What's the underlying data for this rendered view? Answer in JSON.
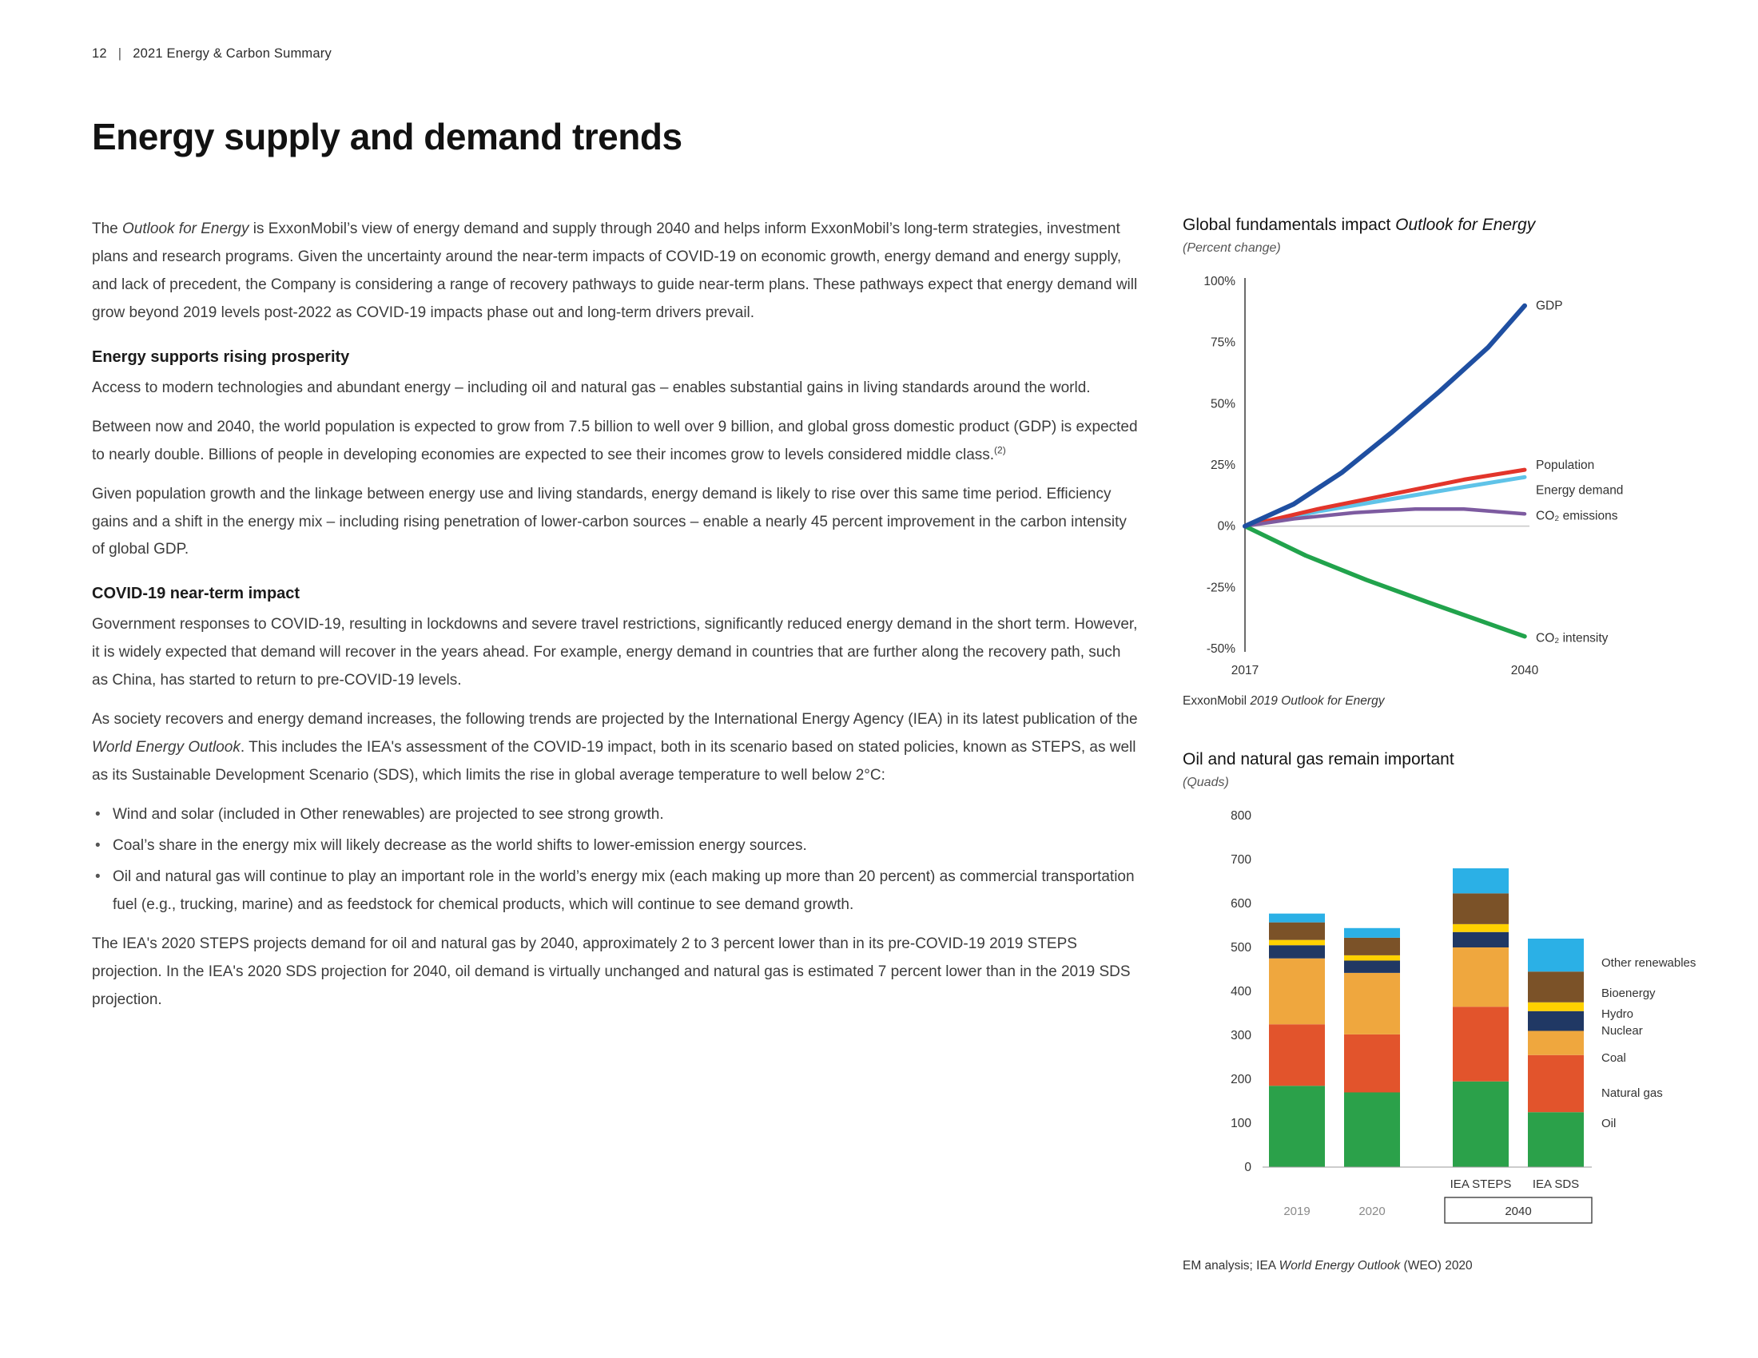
{
  "page": {
    "number": "12",
    "separator": "|",
    "doc_title": "2021 Energy & Carbon Summary",
    "title": "Energy supply and demand trends"
  },
  "intro": {
    "pre": "The ",
    "italic": "Outlook for Energy",
    "rest": " is ExxonMobil’s view of energy demand and supply through 2040 and helps inform ExxonMobil’s long-term strategies, investment plans and research programs. Given the uncertainty around the near-term impacts of COVID-19 on economic growth, energy demand and energy supply, and lack of precedent, the Company is considering a range of recovery pathways to guide near-term plans. These pathways expect that energy demand will grow beyond 2019 levels post-2022 as COVID-19 impacts phase out and long-term drivers prevail."
  },
  "prosperity": {
    "heading": "Energy supports rising prosperity",
    "p1": "Access to modern technologies and abundant energy – including oil and natural gas – enables substantial gains in living standards around the world.",
    "p2": "Between now and 2040, the world population is expected to grow from 7.5 billion to well over 9 billion, and global gross domestic product (GDP) is expected to nearly double. Billions of people in developing economies are expected to see their incomes grow to levels considered middle class.",
    "p2_sup": "(2)",
    "p3": "Given population growth and the linkage between energy use and living standards, energy demand is likely to rise over this same time period. Efficiency gains and a shift in the energy mix – including rising penetration of lower-carbon sources – enable a nearly 45 percent improvement in the carbon intensity of global GDP."
  },
  "covid": {
    "heading": "COVID-19 near-term impact",
    "p1": "Government responses to COVID-19, resulting in lockdowns and severe travel restrictions, significantly reduced energy demand in the short term. However, it is widely expected that demand will recover in the years ahead. For example, energy demand in countries that are further along the recovery path, such as China, has started to return to pre-COVID-19 levels.",
    "p2_pre": "As society recovers and energy demand increases, the following trends are projected by the International Energy Agency (IEA) in its latest publication of the ",
    "p2_italic": "World Energy Outlook",
    "p2_rest": ". This includes the IEA's assessment of the COVID-19 impact, both in its scenario based on stated policies, known as STEPS, as well as its Sustainable Development Scenario (SDS), which limits the rise in global average temperature to well below 2°C:",
    "bullets": [
      "Wind and solar (included in Other renewables) are projected to see strong growth.",
      "Coal’s share in the energy mix will likely decrease as the world shifts to lower-emission energy sources.",
      "Oil and natural gas will continue to play an important role in the world’s energy mix (each making up more than 20 percent) as commercial transportation fuel (e.g., trucking, marine) and as feedstock for chemical products, which will continue to see demand growth."
    ],
    "p3": "The IEA's 2020 STEPS projects demand for oil and natural gas by 2040, approximately 2 to 3 percent lower than in its pre-COVID-19 2019 STEPS projection. In the IEA's 2020 SDS projection for 2040, oil demand is virtually unchanged and natural gas is estimated 7 percent lower than in the 2019 SDS projection."
  },
  "chart_data": [
    {
      "type": "line",
      "title_pre": "Global fundamentals impact ",
      "title_italic": "Outlook for Energy",
      "subtitle": "(Percent change)",
      "xlim": [
        2017,
        2040
      ],
      "ylim": [
        -50,
        100
      ],
      "yticks": [
        {
          "label": "100%",
          "value": 100
        },
        {
          "label": "75%",
          "value": 75
        },
        {
          "label": "50%",
          "value": 50
        },
        {
          "label": "25%",
          "value": 25
        },
        {
          "label": "0%",
          "value": 0
        },
        {
          "label": "-25%",
          "value": -25
        },
        {
          "label": "-50%",
          "value": -50
        }
      ],
      "xticks": [
        {
          "label": "2017",
          "value": 2017
        },
        {
          "label": "2040",
          "value": 2040
        }
      ],
      "series": [
        {
          "name": "Energy demand",
          "color": "#5fc3e8",
          "width": 5,
          "label_dy": 16,
          "points": [
            [
              2017,
              0
            ],
            [
              2023,
              6
            ],
            [
              2029,
              11
            ],
            [
              2035,
              16
            ],
            [
              2040,
              20
            ]
          ]
        },
        {
          "name": "Population",
          "color": "#e2352b",
          "width": 5,
          "label_dy": -6,
          "points": [
            [
              2017,
              0
            ],
            [
              2023,
              7
            ],
            [
              2029,
              13
            ],
            [
              2035,
              19
            ],
            [
              2040,
              23
            ]
          ]
        },
        {
          "name": "CO₂ emissions",
          "color": "#7d5ba0",
          "width": 4.5,
          "label_dy": 2,
          "points": [
            [
              2017,
              0
            ],
            [
              2021,
              3
            ],
            [
              2026,
              5.5
            ],
            [
              2031,
              7
            ],
            [
              2035,
              7
            ],
            [
              2040,
              5
            ]
          ]
        },
        {
          "name": "CO₂ intensity",
          "color": "#21a34c",
          "width": 5.5,
          "label_dy": 2,
          "points": [
            [
              2017,
              0
            ],
            [
              2022,
              -12
            ],
            [
              2027,
              -22
            ],
            [
              2032,
              -31
            ],
            [
              2036,
              -38
            ],
            [
              2040,
              -45
            ]
          ]
        },
        {
          "name": "GDP",
          "color": "#1f4fa1",
          "width": 6,
          "label_dy": 0,
          "points": [
            [
              2017,
              0
            ],
            [
              2021,
              9
            ],
            [
              2025,
              22
            ],
            [
              2029,
              38
            ],
            [
              2033,
              55
            ],
            [
              2037,
              73
            ],
            [
              2040,
              90
            ]
          ]
        }
      ],
      "source_pre": "ExxonMobil ",
      "source_italic": "2019 Outlook for Energy"
    },
    {
      "type": "bar",
      "stacked": true,
      "title": "Oil and natural gas remain important",
      "subtitle": "(Quads)",
      "categories": [
        "2019",
        "2020",
        "IEA STEPS",
        "IEA SDS"
      ],
      "group_label": "2040",
      "ylim": [
        0,
        800
      ],
      "yticks": [
        0,
        100,
        200,
        300,
        400,
        500,
        600,
        700,
        800
      ],
      "series": [
        {
          "name": "Oil",
          "color": "#2ba14a",
          "values": [
            185,
            170,
            195,
            125
          ]
        },
        {
          "name": "Natural gas",
          "color": "#e2542c",
          "values": [
            140,
            132,
            170,
            130
          ]
        },
        {
          "name": "Coal",
          "color": "#efa73e",
          "values": [
            150,
            140,
            135,
            55
          ]
        },
        {
          "name": "Nuclear",
          "color": "#203864",
          "values": [
            30,
            28,
            35,
            45
          ]
        },
        {
          "name": "Hydro",
          "color": "#ffd100",
          "values": [
            12,
            12,
            18,
            20
          ]
        },
        {
          "name": "Bioenergy",
          "color": "#7b5228",
          "values": [
            40,
            40,
            70,
            70
          ]
        },
        {
          "name": "Other renewables",
          "color": "#2bb0e6",
          "values": [
            20,
            22,
            57,
            75
          ]
        }
      ],
      "legend_top_down": [
        "Other renewables",
        "Bioenergy",
        "Hydro",
        "Nuclear",
        "Coal",
        "Natural gas",
        "Oil"
      ],
      "source_pre": "EM analysis; IEA ",
      "source_italic": "World Energy Outlook",
      "source_post": " (WEO) 2020"
    }
  ]
}
